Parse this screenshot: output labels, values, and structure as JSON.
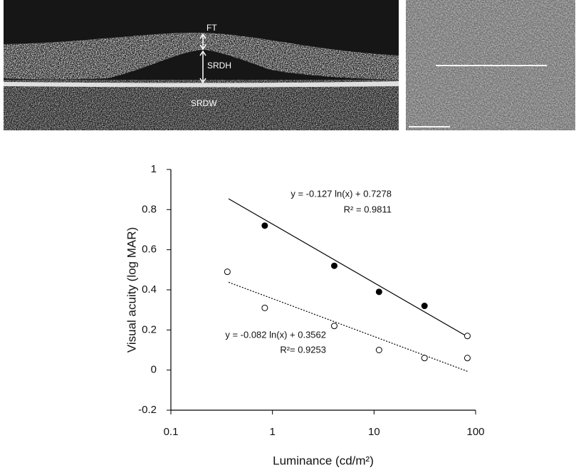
{
  "figure_images": {
    "labels": [
      "FT",
      "SRDH",
      "SRDW"
    ]
  },
  "chart_data": {
    "type": "scatter",
    "x_label": "Luminance (cd/m²)",
    "y_label": "Visual acuity (log MAR)",
    "xscale": "log",
    "xlim": [
      0.1,
      100
    ],
    "xticks": [
      0.1,
      1,
      10,
      100
    ],
    "ylim": [
      -0.2,
      1
    ],
    "yticks": [
      -0.2,
      0,
      0.2,
      0.4,
      0.6,
      0.8,
      1
    ],
    "grid": false,
    "series": [
      {
        "marker": "filled",
        "color": "#000000",
        "x": [
          0.84,
          4.06,
          11.2,
          31.4
        ],
        "values": [
          0.72,
          0.52,
          0.39,
          0.32
        ]
      },
      {
        "marker": "open",
        "color": "#000000",
        "x": [
          0.36,
          0.84,
          4.06,
          11.2,
          31.4,
          83,
          83
        ],
        "values": [
          0.49,
          0.31,
          0.22,
          0.1,
          0.06,
          0.17,
          0.06
        ]
      }
    ],
    "trendlines": [
      {
        "style": "solid",
        "slope": -0.127,
        "intercept": 0.7278,
        "x": [
          0.37,
          83
        ],
        "label": "y = -0.127 ln(x) + 0.7278",
        "r2_label": "R² = 0.9811"
      },
      {
        "style": "dotted",
        "slope": -0.082,
        "intercept": 0.3562,
        "x": [
          0.37,
          83
        ],
        "label": "y = -0.082 ln(x) + 0.3562",
        "r2_label": "R²= 0.9253"
      }
    ]
  }
}
